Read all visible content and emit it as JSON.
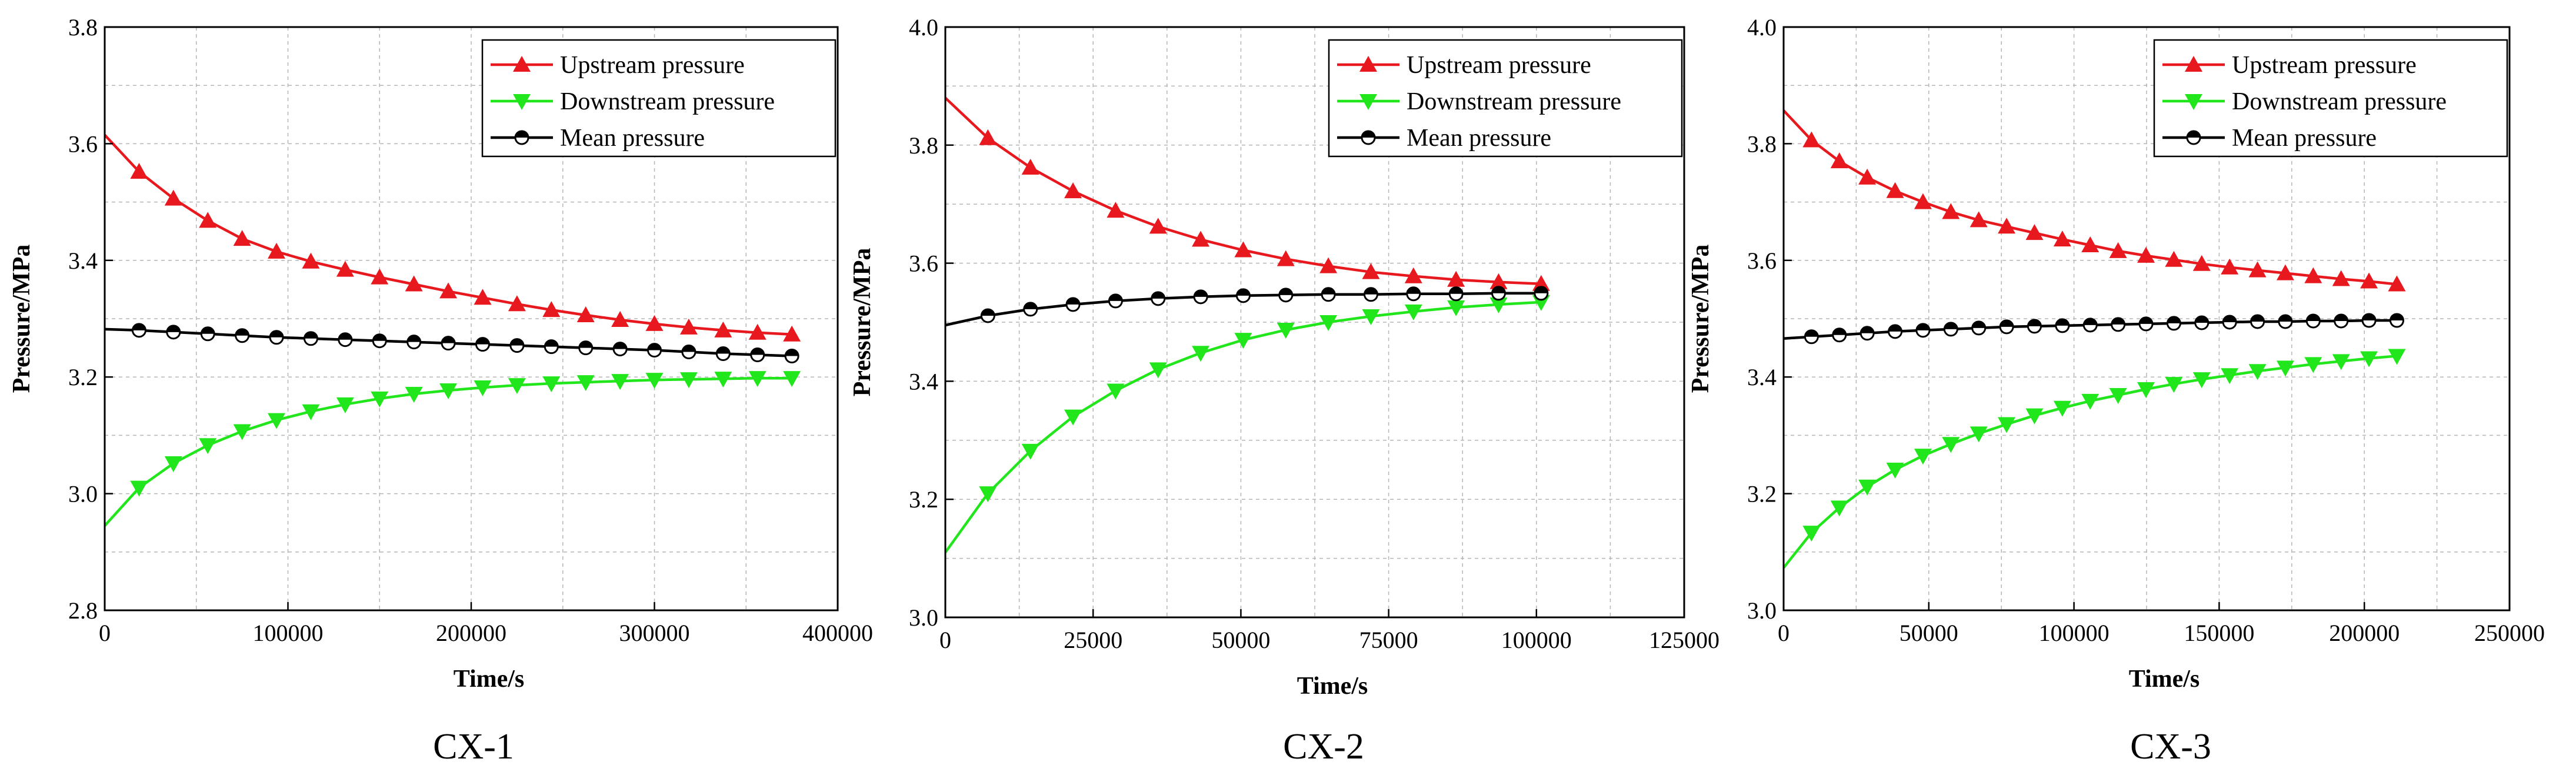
{
  "colors": {
    "upstream": "#e8191e",
    "downstream": "#22e61c",
    "mean": "#000000"
  },
  "chart_data": [
    {
      "type": "line",
      "caption": "CX-1",
      "xlabel": "Time/s",
      "ylabel": "Pressure/MPa",
      "xlim": [
        0,
        400000
      ],
      "ylim": [
        2.8,
        3.8
      ],
      "xticks": [
        "0",
        "100000",
        "200000",
        "300000",
        "400000"
      ],
      "yticks": [
        "2.8",
        "3.0",
        "3.2",
        "3.4",
        "3.6",
        "3.8"
      ],
      "legend_position": "top-right",
      "series": [
        {
          "name": "Upstream pressure",
          "marker": "triangle-up",
          "color_key": "upstream",
          "x": [
            0,
            18750,
            37500,
            56250,
            75000,
            93750,
            112500,
            131250,
            150000,
            168750,
            187500,
            206250,
            225000,
            243750,
            262500,
            281250,
            300000,
            318750,
            337500,
            356250,
            375000
          ],
          "y": [
            3.615,
            3.552,
            3.506,
            3.468,
            3.437,
            3.415,
            3.398,
            3.384,
            3.371,
            3.359,
            3.347,
            3.336,
            3.325,
            3.315,
            3.306,
            3.298,
            3.291,
            3.285,
            3.28,
            3.276,
            3.273
          ]
        },
        {
          "name": "Downstream pressure",
          "marker": "triangle-down",
          "color_key": "downstream",
          "x": [
            0,
            18750,
            37500,
            56250,
            75000,
            93750,
            112500,
            131250,
            150000,
            168750,
            187500,
            206250,
            225000,
            243750,
            262500,
            281250,
            300000,
            318750,
            337500,
            356250,
            375000
          ],
          "y": [
            2.945,
            3.01,
            3.052,
            3.083,
            3.107,
            3.126,
            3.141,
            3.153,
            3.163,
            3.171,
            3.177,
            3.182,
            3.186,
            3.189,
            3.191,
            3.193,
            3.195,
            3.196,
            3.197,
            3.198,
            3.198
          ]
        },
        {
          "name": "Mean pressure",
          "marker": "circle-half",
          "color_key": "mean",
          "x": [
            0,
            18750,
            37500,
            56250,
            75000,
            93750,
            112500,
            131250,
            150000,
            168750,
            187500,
            206250,
            225000,
            243750,
            262500,
            281250,
            300000,
            318750,
            337500,
            356250,
            375000
          ],
          "y": [
            3.282,
            3.28,
            3.277,
            3.274,
            3.271,
            3.268,
            3.266,
            3.264,
            3.262,
            3.26,
            3.258,
            3.256,
            3.254,
            3.252,
            3.25,
            3.248,
            3.246,
            3.243,
            3.24,
            3.238,
            3.236
          ]
        }
      ]
    },
    {
      "type": "line",
      "caption": "CX-2",
      "xlabel": "Time/s",
      "ylabel": "Pressure/MPa",
      "xlim": [
        0,
        125000
      ],
      "ylim": [
        3.0,
        4.0
      ],
      "xticks": [
        "0",
        "25000",
        "50000",
        "75000",
        "100000",
        "125000"
      ],
      "yticks": [
        "3.0",
        "3.2",
        "3.4",
        "3.6",
        "3.8",
        "4.0"
      ],
      "legend_position": "top-right",
      "series": [
        {
          "name": "Upstream pressure",
          "marker": "triangle-up",
          "color_key": "upstream",
          "x": [
            0,
            7200,
            14400,
            21600,
            28800,
            36000,
            43200,
            50400,
            57600,
            64800,
            72000,
            79200,
            86400,
            93600,
            100800
          ],
          "y": [
            3.88,
            3.812,
            3.762,
            3.722,
            3.689,
            3.662,
            3.64,
            3.622,
            3.607,
            3.595,
            3.585,
            3.578,
            3.572,
            3.568,
            3.565
          ]
        },
        {
          "name": "Downstream pressure",
          "marker": "triangle-down",
          "color_key": "downstream",
          "x": [
            0,
            7200,
            14400,
            21600,
            28800,
            36000,
            43200,
            50400,
            57600,
            64800,
            72000,
            79200,
            86400,
            93600,
            100800
          ],
          "y": [
            3.11,
            3.21,
            3.282,
            3.34,
            3.384,
            3.42,
            3.448,
            3.47,
            3.487,
            3.5,
            3.51,
            3.518,
            3.525,
            3.53,
            3.534
          ]
        },
        {
          "name": "Mean pressure",
          "marker": "circle-half",
          "color_key": "mean",
          "x": [
            0,
            7200,
            14400,
            21600,
            28800,
            36000,
            43200,
            50400,
            57600,
            64800,
            72000,
            79200,
            86400,
            93600,
            100800
          ],
          "y": [
            3.495,
            3.511,
            3.522,
            3.53,
            3.536,
            3.54,
            3.543,
            3.545,
            3.546,
            3.547,
            3.547,
            3.548,
            3.548,
            3.549,
            3.549
          ]
        }
      ]
    },
    {
      "type": "line",
      "caption": "CX-3",
      "xlabel": "Time/s",
      "ylabel": "Pressure/MPa",
      "xlim": [
        0,
        250000
      ],
      "ylim": [
        3.0,
        4.0
      ],
      "xticks": [
        "0",
        "50000",
        "100000",
        "150000",
        "200000",
        "250000"
      ],
      "yticks": [
        "3.0",
        "3.2",
        "3.4",
        "3.6",
        "3.8",
        "4.0"
      ],
      "legend_position": "top-right",
      "series": [
        {
          "name": "Upstream pressure",
          "marker": "triangle-up",
          "color_key": "upstream",
          "x": [
            0,
            9600,
            19200,
            28800,
            38400,
            48000,
            57600,
            67200,
            76800,
            86400,
            96000,
            105600,
            115200,
            124800,
            134400,
            144000,
            153600,
            163200,
            172800,
            182400,
            192000,
            201600,
            211200
          ],
          "y": [
            3.857,
            3.806,
            3.77,
            3.742,
            3.719,
            3.7,
            3.683,
            3.669,
            3.658,
            3.647,
            3.636,
            3.626,
            3.616,
            3.608,
            3.601,
            3.594,
            3.588,
            3.583,
            3.578,
            3.573,
            3.568,
            3.564,
            3.559
          ]
        },
        {
          "name": "Downstream pressure",
          "marker": "triangle-down",
          "color_key": "downstream",
          "x": [
            0,
            9600,
            19200,
            28800,
            38400,
            48000,
            57600,
            67200,
            76800,
            86400,
            96000,
            105600,
            115200,
            124800,
            134400,
            144000,
            153600,
            163200,
            172800,
            182400,
            192000,
            201600,
            211200
          ],
          "y": [
            3.073,
            3.133,
            3.176,
            3.212,
            3.241,
            3.265,
            3.285,
            3.303,
            3.319,
            3.334,
            3.347,
            3.359,
            3.369,
            3.379,
            3.388,
            3.396,
            3.403,
            3.41,
            3.416,
            3.422,
            3.427,
            3.432,
            3.436
          ]
        },
        {
          "name": "Mean pressure",
          "marker": "circle-half",
          "color_key": "mean",
          "x": [
            0,
            9600,
            19200,
            28800,
            38400,
            48000,
            57600,
            67200,
            76800,
            86400,
            96000,
            105600,
            115200,
            124800,
            134400,
            144000,
            153600,
            163200,
            172800,
            182400,
            192000,
            201600,
            211200
          ],
          "y": [
            3.466,
            3.469,
            3.472,
            3.475,
            3.478,
            3.48,
            3.482,
            3.484,
            3.486,
            3.487,
            3.488,
            3.489,
            3.49,
            3.491,
            3.492,
            3.493,
            3.494,
            3.495,
            3.495,
            3.496,
            3.496,
            3.497,
            3.497
          ]
        }
      ]
    }
  ]
}
